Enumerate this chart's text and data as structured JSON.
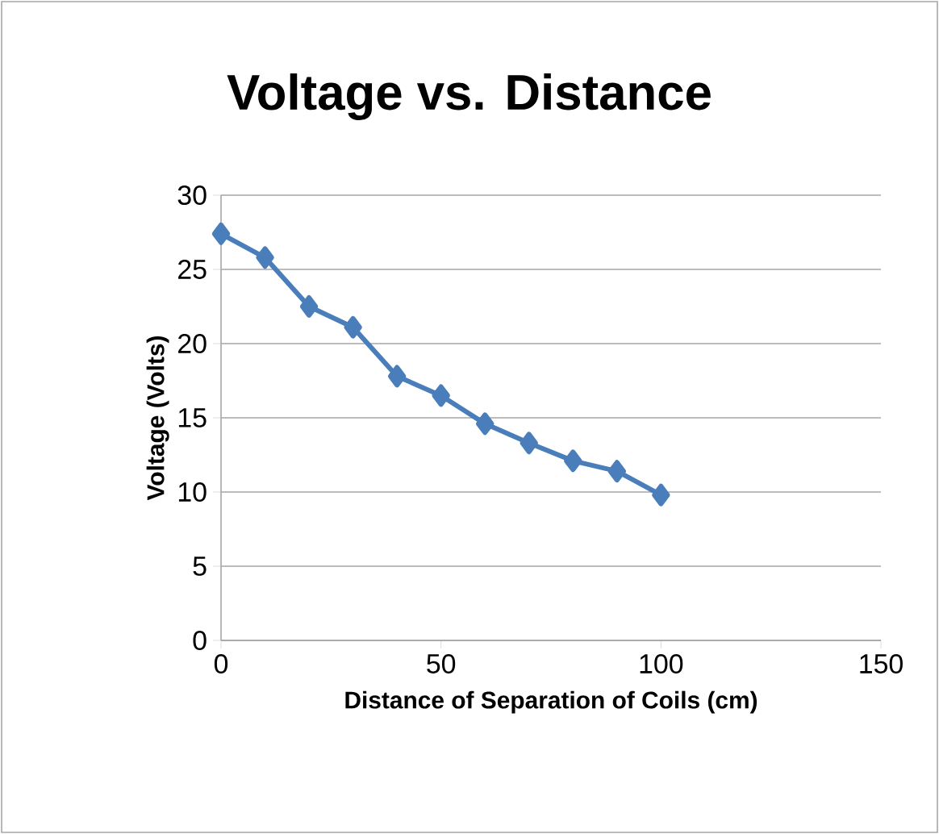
{
  "chart_data": {
    "type": "line",
    "title": "Voltage vs. Distance",
    "xlabel": "Distance of Separation of  Coils (cm)",
    "ylabel": "Voltage (Volts)",
    "x": [
      0,
      10,
      20,
      30,
      40,
      50,
      60,
      70,
      80,
      90,
      100
    ],
    "series": [
      {
        "color": "#4a7ebb",
        "values": [
          27.4,
          25.8,
          22.5,
          21.1,
          17.8,
          16.5,
          14.6,
          13.3,
          12.1,
          11.4,
          9.8
        ]
      }
    ],
    "xlim": [
      0,
      150
    ],
    "xticks": [
      0,
      50,
      100,
      150
    ],
    "ylim": [
      0,
      30
    ],
    "yticks": [
      0,
      5,
      10,
      15,
      20,
      25,
      30
    ],
    "grid": "y",
    "marker": "diamond",
    "line_style": "solid"
  }
}
